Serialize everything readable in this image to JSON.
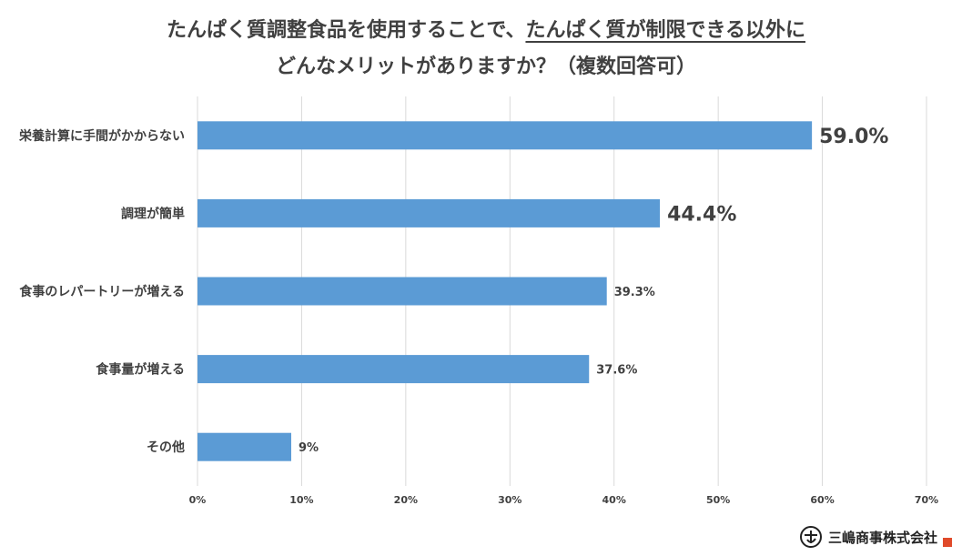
{
  "title": {
    "line1_part1": "たんぱく質調整食品を使用することで、",
    "line1_part2": "たんぱく質が制限できる以外に",
    "line2": "どんなメリットがありますか？（複数回答可）"
  },
  "chart_data": {
    "type": "bar",
    "orientation": "horizontal",
    "categories": [
      "栄養計算に手間がかからない",
      "調理が簡単",
      "食事のレパートリーが増える",
      "食事量が増える",
      "その他"
    ],
    "values": [
      59.0,
      44.4,
      39.3,
      37.6,
      9
    ],
    "value_labels": [
      "59.0%",
      "44.4%",
      "39.3%",
      "37.6%",
      "9%"
    ],
    "xlim": [
      0,
      70
    ],
    "x_ticks": [
      "0%",
      "10%",
      "20%",
      "30%",
      "40%",
      "50%",
      "60%",
      "70%"
    ],
    "grid": true,
    "bar_color": "#5b9bd5",
    "highlight_label_color": "#c00000"
  },
  "brand": {
    "name": "三嶋商事株式会社",
    "logo_icon": "mishima-logo-icon"
  }
}
